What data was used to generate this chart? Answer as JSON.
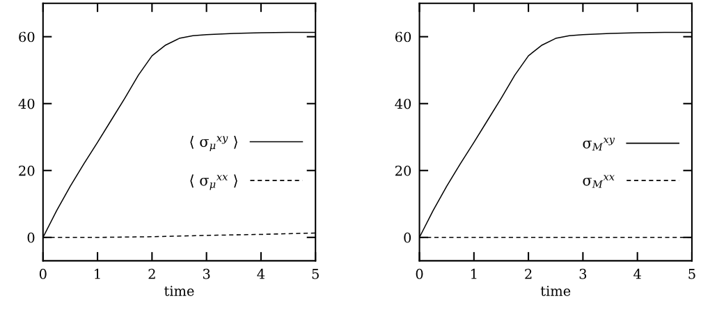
{
  "chart_data": [
    {
      "type": "line",
      "xlabel": "time",
      "xlim": [
        0,
        5
      ],
      "xticks": [
        0,
        1,
        2,
        3,
        4,
        5
      ],
      "ylim": [
        -7,
        70
      ],
      "yticks": [
        0,
        20,
        40,
        60
      ],
      "legend": "right",
      "grid": false,
      "series": [
        {
          "name": "⟨ σ$_{μ}$$^{xy}$ ⟩",
          "color": "#000000",
          "line_style": "solid",
          "x": [
            0,
            0.25,
            0.5,
            0.75,
            1,
            1.25,
            1.5,
            1.75,
            2,
            2.25,
            2.5,
            2.75,
            3,
            3.5,
            4,
            4.5,
            5
          ],
          "values": [
            0,
            8,
            15.3,
            22,
            28.4,
            35,
            41.6,
            48.5,
            54.3,
            57.5,
            59.5,
            60.3,
            60.6,
            61,
            61.2,
            61.3,
            61.3
          ]
        },
        {
          "name": "⟨ σ$_{μ}$$^{xx}$ ⟩",
          "color": "#000000",
          "line_style": "dashed",
          "x": [
            0,
            1,
            2,
            3,
            4,
            5
          ],
          "values": [
            0,
            0,
            0.2,
            0.6,
            0.9,
            1.3
          ]
        }
      ]
    },
    {
      "type": "line",
      "xlabel": "time",
      "xlim": [
        0,
        5
      ],
      "xticks": [
        0,
        1,
        2,
        3,
        4,
        5
      ],
      "ylim": [
        -7,
        70
      ],
      "yticks": [
        0,
        20,
        40,
        60
      ],
      "legend": "right",
      "grid": false,
      "series": [
        {
          "name": "σ$_{M}$$^{xy}$",
          "color": "#000000",
          "line_style": "solid",
          "x": [
            0,
            0.25,
            0.5,
            0.75,
            1,
            1.25,
            1.5,
            1.75,
            2,
            2.25,
            2.5,
            2.75,
            3,
            3.5,
            4,
            4.5,
            5
          ],
          "values": [
            0,
            8,
            15.3,
            22,
            28.4,
            35,
            41.6,
            48.5,
            54.3,
            57.5,
            59.5,
            60.3,
            60.6,
            61,
            61.2,
            61.3,
            61.3
          ]
        },
        {
          "name": "σ$_{M}$$^{xx}$",
          "color": "#000000",
          "line_style": "dashed",
          "x": [
            0,
            1,
            2,
            3,
            4,
            5
          ],
          "values": [
            0,
            0,
            0,
            0,
            0,
            0
          ]
        }
      ]
    }
  ]
}
